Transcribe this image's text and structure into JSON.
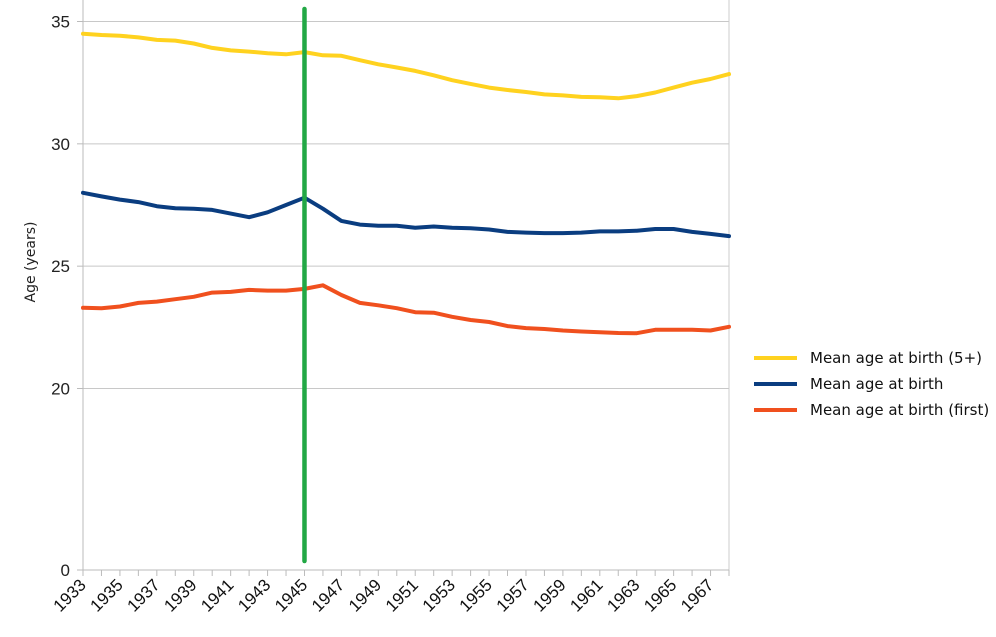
{
  "chart_data": {
    "type": "line",
    "ylabel": "Age (years)",
    "x": [
      1933,
      1934,
      1935,
      1936,
      1937,
      1938,
      1939,
      1940,
      1941,
      1942,
      1943,
      1944,
      1945,
      1946,
      1947,
      1948,
      1949,
      1950,
      1951,
      1952,
      1953,
      1954,
      1955,
      1956,
      1957,
      1958,
      1959,
      1960,
      1961,
      1962,
      1963,
      1964,
      1965,
      1966,
      1967,
      1968
    ],
    "x_tick_labels": [
      "1933",
      "1935",
      "1937",
      "1939",
      "1941",
      "1943",
      "1945",
      "1947",
      "1949",
      "1951",
      "1953",
      "1955",
      "1957",
      "1959",
      "1961",
      "1963",
      "1965",
      "1967"
    ],
    "y_tick_labels": [
      "0",
      "20",
      "25",
      "30",
      "35"
    ],
    "y_tick_values": [
      0,
      20,
      25,
      30,
      35
    ],
    "ylim": [
      0,
      35.6
    ],
    "y_axis_note": "non-linear: 0 shown just below 20",
    "grid": "horizontal",
    "legend_position": "right",
    "series": [
      {
        "name": "Mean age at birth (5+)",
        "color": "#FFD21F",
        "values": [
          34.5,
          34.45,
          34.42,
          34.35,
          34.25,
          34.22,
          34.1,
          33.92,
          33.82,
          33.77,
          33.7,
          33.66,
          33.75,
          33.62,
          33.6,
          33.42,
          33.25,
          33.12,
          32.98,
          32.8,
          32.6,
          32.45,
          32.3,
          32.2,
          32.12,
          32.02,
          31.98,
          31.92,
          31.9,
          31.86,
          31.95,
          32.1,
          32.3,
          32.5,
          32.65,
          32.85
        ]
      },
      {
        "name": "Mean age at birth",
        "color": "#0A3D80",
        "values": [
          28.0,
          27.85,
          27.72,
          27.62,
          27.45,
          27.37,
          27.35,
          27.3,
          27.15,
          27.0,
          27.2,
          27.5,
          27.8,
          27.35,
          26.85,
          26.7,
          26.65,
          26.65,
          26.57,
          26.62,
          26.57,
          26.55,
          26.5,
          26.4,
          26.37,
          26.35,
          26.35,
          26.37,
          26.42,
          26.42,
          26.45,
          26.52,
          26.52,
          26.4,
          26.32,
          26.23
        ]
      },
      {
        "name": "Mean age at birth (first)",
        "color": "#F0501E",
        "values": [
          23.3,
          23.28,
          23.35,
          23.5,
          23.55,
          23.65,
          23.75,
          23.92,
          23.95,
          24.03,
          24.0,
          24.0,
          24.07,
          24.22,
          23.82,
          23.5,
          23.4,
          23.28,
          23.12,
          23.1,
          22.93,
          22.8,
          22.72,
          22.55,
          22.47,
          22.43,
          22.37,
          22.33,
          22.3,
          22.27,
          22.26,
          22.4,
          22.4,
          22.4,
          22.37,
          22.52
        ]
      }
    ],
    "annotation": {
      "type": "vertical-line",
      "x": 1945,
      "color": "#22A845"
    }
  }
}
